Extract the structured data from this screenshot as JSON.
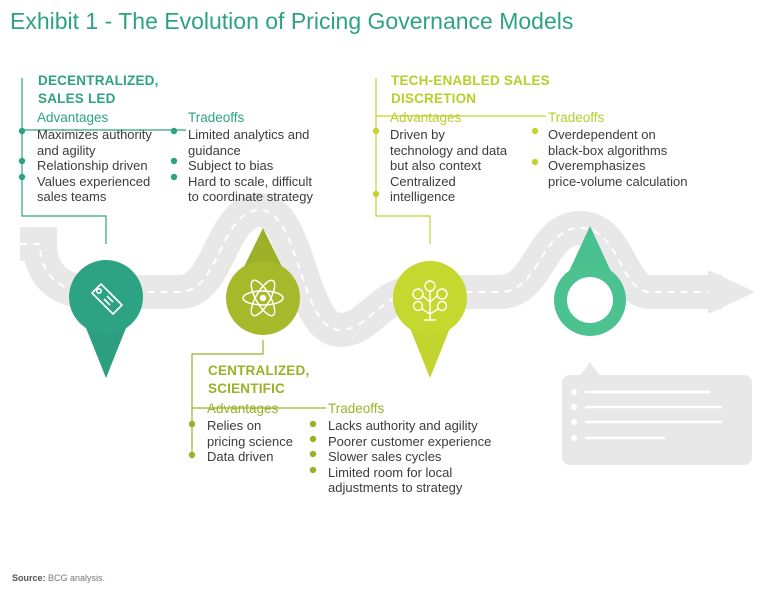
{
  "title": "Exhibit 1 - The Evolution of Pricing Governance Models",
  "colors": {
    "green": "#2ea383",
    "olive": "#9cb028",
    "lime": "#b8cf2a",
    "teal": "#49c08f",
    "road": "#e6e6e6"
  },
  "models": [
    {
      "heading": [
        "DECENTRALIZED,",
        "SALES LED"
      ],
      "icon": "price-tag-icon",
      "advantages_label": "Advantages",
      "advantages": [
        [
          "Maximizes authority",
          "and agility"
        ],
        [
          "Relationship driven"
        ],
        [
          "Values experienced",
          "sales teams"
        ]
      ],
      "tradeoffs_label": "Tradeoffs",
      "tradeoffs": [
        [
          "Limited analytics and",
          "guidance"
        ],
        [
          "Subject to bias"
        ],
        [
          "Hard to scale, difficult",
          "to coordinate strategy"
        ]
      ]
    },
    {
      "heading": [
        "CENTRALIZED,",
        "SCIENTIFIC"
      ],
      "icon": "atom-icon",
      "advantages_label": "Advantages",
      "advantages": [
        [
          "Relies on",
          "pricing science"
        ],
        [
          "Data driven"
        ]
      ],
      "tradeoffs_label": "Tradeoffs",
      "tradeoffs": [
        [
          "Lacks authority and agility"
        ],
        [
          "Poorer customer experience"
        ],
        [
          "Slower sales cycles"
        ],
        [
          "Limited room for local",
          "adjustments to strategy"
        ]
      ]
    },
    {
      "heading": [
        "TECH-ENABLED SALES",
        "DISCRETION"
      ],
      "icon": "money-tree-icon",
      "advantages_label": "Advantages",
      "advantages": [
        [
          "Driven by",
          "technology and data",
          "but also context"
        ],
        [
          "Centralized",
          "intelligence"
        ]
      ],
      "tradeoffs_label": "Tradeoffs",
      "tradeoffs": [
        [
          "Overdependent on",
          "black-box algorithms"
        ],
        [
          "Overemphasizes",
          "price-volume calculation"
        ]
      ]
    }
  ],
  "future_model": {
    "icon": "empty-ring-icon",
    "card": "placeholder-text-card"
  },
  "source": {
    "label": "Source:",
    "text": " BCG analysis."
  }
}
